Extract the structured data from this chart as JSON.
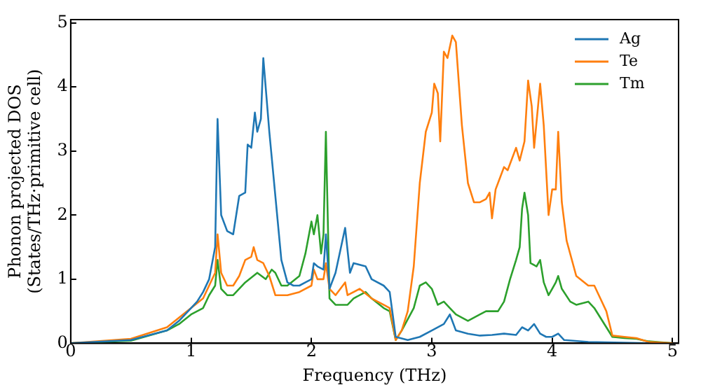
{
  "chart_data": {
    "type": "line",
    "xlabel": "Frequency (THz)",
    "ylabel": [
      "Phonon projected DOS",
      "(States/THz·primitive cell)"
    ],
    "xlim": [
      0,
      5.05
    ],
    "ylim": [
      0,
      5.05
    ],
    "xticks": [
      0,
      1,
      2,
      3,
      4,
      5
    ],
    "yticks": [
      0,
      1,
      2,
      3,
      4,
      5
    ],
    "grid": false,
    "legend": "top right",
    "marker": "none",
    "line_style": "solid",
    "series": [
      {
        "name": "Ag",
        "color": "#1f77b4",
        "x": [
          0,
          0.5,
          0.8,
          0.9,
          1.0,
          1.05,
          1.1,
          1.15,
          1.2,
          1.22,
          1.25,
          1.3,
          1.35,
          1.4,
          1.45,
          1.47,
          1.5,
          1.53,
          1.55,
          1.58,
          1.6,
          1.65,
          1.7,
          1.75,
          1.8,
          1.85,
          1.9,
          1.95,
          2.0,
          2.02,
          2.05,
          2.1,
          2.12,
          2.15,
          2.2,
          2.28,
          2.32,
          2.35,
          2.45,
          2.5,
          2.6,
          2.65,
          2.7,
          2.8,
          2.9,
          3.0,
          3.1,
          3.15,
          3.2,
          3.3,
          3.4,
          3.5,
          3.6,
          3.7,
          3.75,
          3.8,
          3.85,
          3.9,
          3.95,
          4.0,
          4.05,
          4.1,
          4.3,
          4.8
        ],
        "values": [
          0,
          0.05,
          0.2,
          0.35,
          0.55,
          0.65,
          0.8,
          1.0,
          1.5,
          3.5,
          2.0,
          1.75,
          1.7,
          2.3,
          2.35,
          3.1,
          3.05,
          3.6,
          3.3,
          3.5,
          4.45,
          3.3,
          2.3,
          1.3,
          0.95,
          0.9,
          0.9,
          0.95,
          1.0,
          1.25,
          1.2,
          1.15,
          1.7,
          0.85,
          1.1,
          1.8,
          1.1,
          1.25,
          1.2,
          1.0,
          0.9,
          0.8,
          0.1,
          0.05,
          0.1,
          0.2,
          0.3,
          0.45,
          0.2,
          0.15,
          0.12,
          0.13,
          0.15,
          0.13,
          0.25,
          0.2,
          0.3,
          0.15,
          0.1,
          0.1,
          0.15,
          0.05,
          0.02,
          0
        ]
      },
      {
        "name": "Te",
        "color": "#ff7f0e",
        "x": [
          0,
          0.5,
          0.8,
          0.9,
          1.0,
          1.1,
          1.15,
          1.2,
          1.22,
          1.25,
          1.3,
          1.35,
          1.4,
          1.45,
          1.5,
          1.52,
          1.55,
          1.6,
          1.65,
          1.7,
          1.75,
          1.8,
          1.9,
          2.0,
          2.02,
          2.05,
          2.1,
          2.12,
          2.15,
          2.2,
          2.28,
          2.3,
          2.4,
          2.5,
          2.6,
          2.65,
          2.7,
          2.75,
          2.8,
          2.85,
          2.9,
          2.95,
          3.0,
          3.02,
          3.05,
          3.07,
          3.1,
          3.13,
          3.17,
          3.2,
          3.25,
          3.3,
          3.35,
          3.4,
          3.45,
          3.48,
          3.5,
          3.53,
          3.6,
          3.63,
          3.7,
          3.73,
          3.77,
          3.8,
          3.83,
          3.85,
          3.9,
          3.93,
          3.97,
          4.0,
          4.03,
          4.05,
          4.08,
          4.12,
          4.2,
          4.3,
          4.35,
          4.4,
          4.45,
          4.5,
          4.6,
          4.7,
          4.8,
          5.0
        ],
        "values": [
          0,
          0.07,
          0.25,
          0.4,
          0.55,
          0.7,
          0.9,
          1.1,
          1.7,
          1.1,
          0.9,
          0.9,
          1.05,
          1.3,
          1.35,
          1.5,
          1.3,
          1.25,
          1.05,
          0.75,
          0.75,
          0.75,
          0.8,
          0.9,
          1.15,
          1.0,
          1.0,
          1.25,
          0.85,
          0.75,
          0.95,
          0.75,
          0.85,
          0.7,
          0.6,
          0.55,
          0.05,
          0.2,
          0.5,
          1.2,
          2.5,
          3.3,
          3.6,
          4.05,
          3.9,
          3.15,
          4.55,
          4.45,
          4.8,
          4.7,
          3.4,
          2.5,
          2.2,
          2.2,
          2.25,
          2.35,
          1.95,
          2.4,
          2.75,
          2.7,
          3.05,
          2.85,
          3.15,
          4.1,
          3.7,
          3.05,
          4.05,
          3.4,
          2.0,
          2.4,
          2.4,
          3.3,
          2.2,
          1.6,
          1.05,
          0.9,
          0.9,
          0.7,
          0.5,
          0.12,
          0.1,
          0.08,
          0.02,
          0
        ]
      },
      {
        "name": "Tm",
        "color": "#2ca02c",
        "x": [
          0,
          0.5,
          0.8,
          0.9,
          1.0,
          1.1,
          1.15,
          1.2,
          1.22,
          1.25,
          1.3,
          1.35,
          1.45,
          1.55,
          1.62,
          1.67,
          1.7,
          1.75,
          1.8,
          1.9,
          1.95,
          2.0,
          2.02,
          2.05,
          2.08,
          2.1,
          2.12,
          2.15,
          2.2,
          2.3,
          2.35,
          2.45,
          2.5,
          2.6,
          2.65,
          2.7,
          2.75,
          2.85,
          2.9,
          2.95,
          3.0,
          3.05,
          3.1,
          3.15,
          3.2,
          3.3,
          3.4,
          3.45,
          3.55,
          3.6,
          3.65,
          3.7,
          3.73,
          3.75,
          3.77,
          3.8,
          3.82,
          3.87,
          3.9,
          3.93,
          3.97,
          4.0,
          4.03,
          4.05,
          4.08,
          4.15,
          4.2,
          4.3,
          4.35,
          4.4,
          4.45,
          4.5,
          4.6,
          4.7,
          4.8,
          5.0
        ],
        "values": [
          0,
          0.04,
          0.2,
          0.3,
          0.45,
          0.55,
          0.75,
          0.9,
          1.3,
          0.85,
          0.75,
          0.75,
          0.95,
          1.1,
          1.0,
          1.15,
          1.1,
          0.9,
          0.9,
          1.05,
          1.4,
          1.9,
          1.7,
          2.0,
          1.4,
          1.7,
          3.3,
          0.7,
          0.6,
          0.6,
          0.7,
          0.8,
          0.7,
          0.55,
          0.5,
          0.05,
          0.2,
          0.55,
          0.9,
          0.95,
          0.85,
          0.6,
          0.65,
          0.55,
          0.45,
          0.35,
          0.45,
          0.5,
          0.5,
          0.65,
          1.0,
          1.3,
          1.5,
          2.1,
          2.35,
          2.0,
          1.25,
          1.2,
          1.3,
          0.95,
          0.75,
          0.85,
          0.95,
          1.05,
          0.85,
          0.65,
          0.6,
          0.65,
          0.55,
          0.4,
          0.25,
          0.1,
          0.08,
          0.07,
          0.03,
          0
        ]
      }
    ]
  }
}
